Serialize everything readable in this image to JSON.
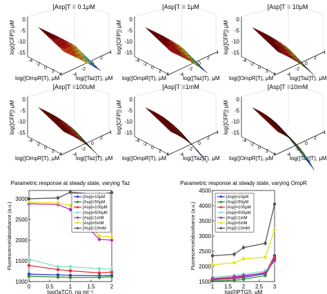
{
  "surfaces": {
    "titles": [
      "[Asp]T = 0.1μM",
      "[Asp]T = 1μM",
      "[Asp]T = 10μM",
      "[Asp]T =100uM",
      "[Asp]T =1mM",
      "[Asp]T =10mM"
    ],
    "ylabel": "log([CFP]) μM",
    "xlabel_left": "log([OmpR]T), μM",
    "xlabel_right": "log([Taz]T), μM",
    "zticks": [
      "0",
      "-5",
      "-10",
      "-15"
    ],
    "xticks_left": [
      "-4",
      "-2",
      "0",
      "2",
      "4"
    ],
    "xticks_right": [
      "-4",
      "-2",
      "0",
      "2",
      "4"
    ],
    "colormap": [
      "#0000c8",
      "#2e6cff",
      "#37d6e6",
      "#aef06a",
      "#fff03a",
      "#ffa51e",
      "#ff4b14",
      "#d21414",
      "#8c0000"
    ]
  },
  "chart_data": [
    {
      "type": "line",
      "title": "Parametric response at steady state, varying Taz",
      "xlabel": "log([aTC]), ng ml⁻¹",
      "ylabel": "Fluorescence/absorbance (a.u.)",
      "xlim": [
        0,
        2
      ],
      "ylim": [
        1000,
        3200
      ],
      "xticks": [
        "0",
        "0.5",
        "1",
        "1.5",
        "2"
      ],
      "yticks": [
        "1000",
        "1500",
        "2000",
        "2500",
        "3000"
      ],
      "x": [
        0,
        0.7,
        1,
        1.7,
        2
      ],
      "series": [
        {
          "name": "[Asp]=10μM",
          "color": "#3333cc",
          "values": [
            1180,
            1160,
            1150,
            1140,
            1150
          ]
        },
        {
          "name": "[Asp]=50μM",
          "color": "#2a8c2a",
          "values": [
            1130,
            1110,
            1100,
            1100,
            1120
          ]
        },
        {
          "name": "[Asp]=100μM",
          "color": "#e03030",
          "values": [
            1390,
            1290,
            1260,
            1210,
            1230
          ]
        },
        {
          "name": "[Asp]=500μM",
          "color": "#7fe0c8",
          "values": [
            1540,
            1360,
            1360,
            1310,
            1300
          ]
        },
        {
          "name": "[Asp]=1mM",
          "color": "#b030c0",
          "values": [
            2880,
            2860,
            2740,
            2020,
            2000
          ]
        },
        {
          "name": "[Asp]=5mM",
          "color": "#e8e020",
          "values": [
            2920,
            2900,
            2840,
            2100,
            2080
          ]
        },
        {
          "name": "[Asp]=10mM",
          "color": "#555555",
          "values": [
            3000,
            3020,
            3160,
            3100,
            3150
          ]
        }
      ],
      "legend": "top-right"
    },
    {
      "type": "line",
      "title": "Parametric response at steady state, varying OmpR",
      "xlabel": "log([IPTG]), μM",
      "ylabel": "Fluorescence/absorbance (a.u.)",
      "xlim": [
        1,
        3
      ],
      "ylim": [
        1500,
        4500
      ],
      "xticks": [
        "1",
        "1.5",
        "2",
        "2.5",
        "3"
      ],
      "yticks": [
        "1500",
        "2000",
        "2500",
        "3000",
        "3500",
        "4000",
        "4500"
      ],
      "x": [
        1,
        1.7,
        2,
        2.7,
        3
      ],
      "series": [
        {
          "name": "[Asp]=10μM",
          "color": "#3333cc",
          "values": [
            1560,
            1600,
            1640,
            1760,
            2350
          ]
        },
        {
          "name": "[Asp]=50μM",
          "color": "#2a8c2a",
          "values": [
            1520,
            1540,
            1580,
            1700,
            2250
          ]
        },
        {
          "name": "[Asp]=100μM",
          "color": "#e03030",
          "values": [
            1580,
            1620,
            1680,
            1800,
            2300
          ]
        },
        {
          "name": "[Asp]=500μM",
          "color": "#7fe0c8",
          "values": [
            1650,
            1700,
            1740,
            1850,
            2150
          ]
        },
        {
          "name": "[Asp]=1mM",
          "color": "#b030c0",
          "values": [
            1600,
            1660,
            1700,
            1780,
            2200
          ]
        },
        {
          "name": "[Asp]=5mM",
          "color": "#e8e020",
          "values": [
            2050,
            2120,
            2250,
            2300,
            3200
          ]
        },
        {
          "name": "[Asp]=10mM",
          "color": "#555555",
          "values": [
            2350,
            2400,
            2620,
            2760,
            4050
          ]
        }
      ],
      "legend": "top-left"
    }
  ]
}
